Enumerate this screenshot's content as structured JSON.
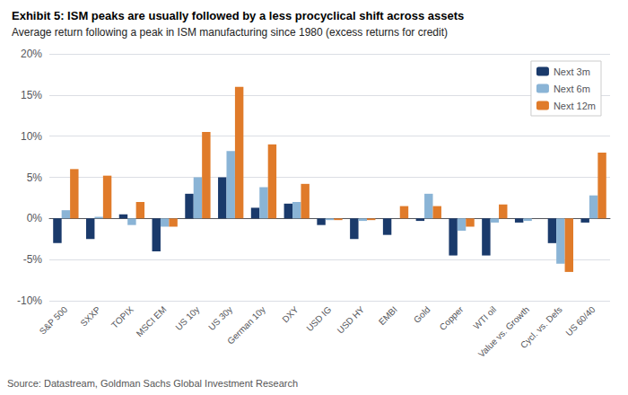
{
  "chart_data": {
    "type": "bar",
    "title": "Exhibit 5: ISM peaks are usually followed by a less procyclical shift across assets",
    "subtitle": "Average return following a peak in ISM manufacturing since 1980 (excess returns for credit)",
    "annotations": [
      "Source: Datastream, Goldman Sachs Global Investment Research"
    ],
    "categories": [
      "S&P 500",
      "SXXP",
      "TOPIX",
      "MSCI EM",
      "US 10y",
      "US 30y",
      "German 10y",
      "DXY",
      "USD IG",
      "USD HY",
      "EMBI",
      "Gold",
      "Copper",
      "WTI oil",
      "Value vs. Growth",
      "Cycl. vs. Defs",
      "US 60/40"
    ],
    "series": [
      {
        "name": "Next 3m",
        "color": "#1a3a6b",
        "values": [
          -3.0,
          -2.5,
          0.5,
          -4.0,
          3.0,
          5.0,
          1.3,
          1.8,
          -0.8,
          -2.5,
          -2.0,
          -0.3,
          -4.5,
          -4.5,
          -0.5,
          -3.0,
          -0.5
        ]
      },
      {
        "name": "Next 6m",
        "color": "#8ab4d6",
        "values": [
          1.0,
          0.2,
          -0.8,
          -1.0,
          5.0,
          8.2,
          3.8,
          2.0,
          -0.2,
          -0.3,
          0.0,
          3.0,
          -1.5,
          -0.5,
          -0.3,
          -5.5,
          2.8
        ]
      },
      {
        "name": "Next 12m",
        "color": "#e07b2a",
        "values": [
          6.0,
          5.2,
          2.0,
          -1.0,
          10.5,
          16.0,
          9.0,
          4.2,
          -0.2,
          -0.2,
          1.5,
          1.5,
          -1.0,
          1.7,
          0.0,
          -6.5,
          8.0
        ]
      }
    ],
    "ylim": [
      -10,
      20
    ],
    "yticks": [
      {
        "value": -10,
        "label": "-10%"
      },
      {
        "value": -5,
        "label": "-5%"
      },
      {
        "value": 0,
        "label": "0%"
      },
      {
        "value": 5,
        "label": "5%"
      },
      {
        "value": 10,
        "label": "10%"
      },
      {
        "value": 15,
        "label": "15%"
      },
      {
        "value": 20,
        "label": "20%"
      }
    ],
    "grid": true,
    "legend": "upper right"
  }
}
